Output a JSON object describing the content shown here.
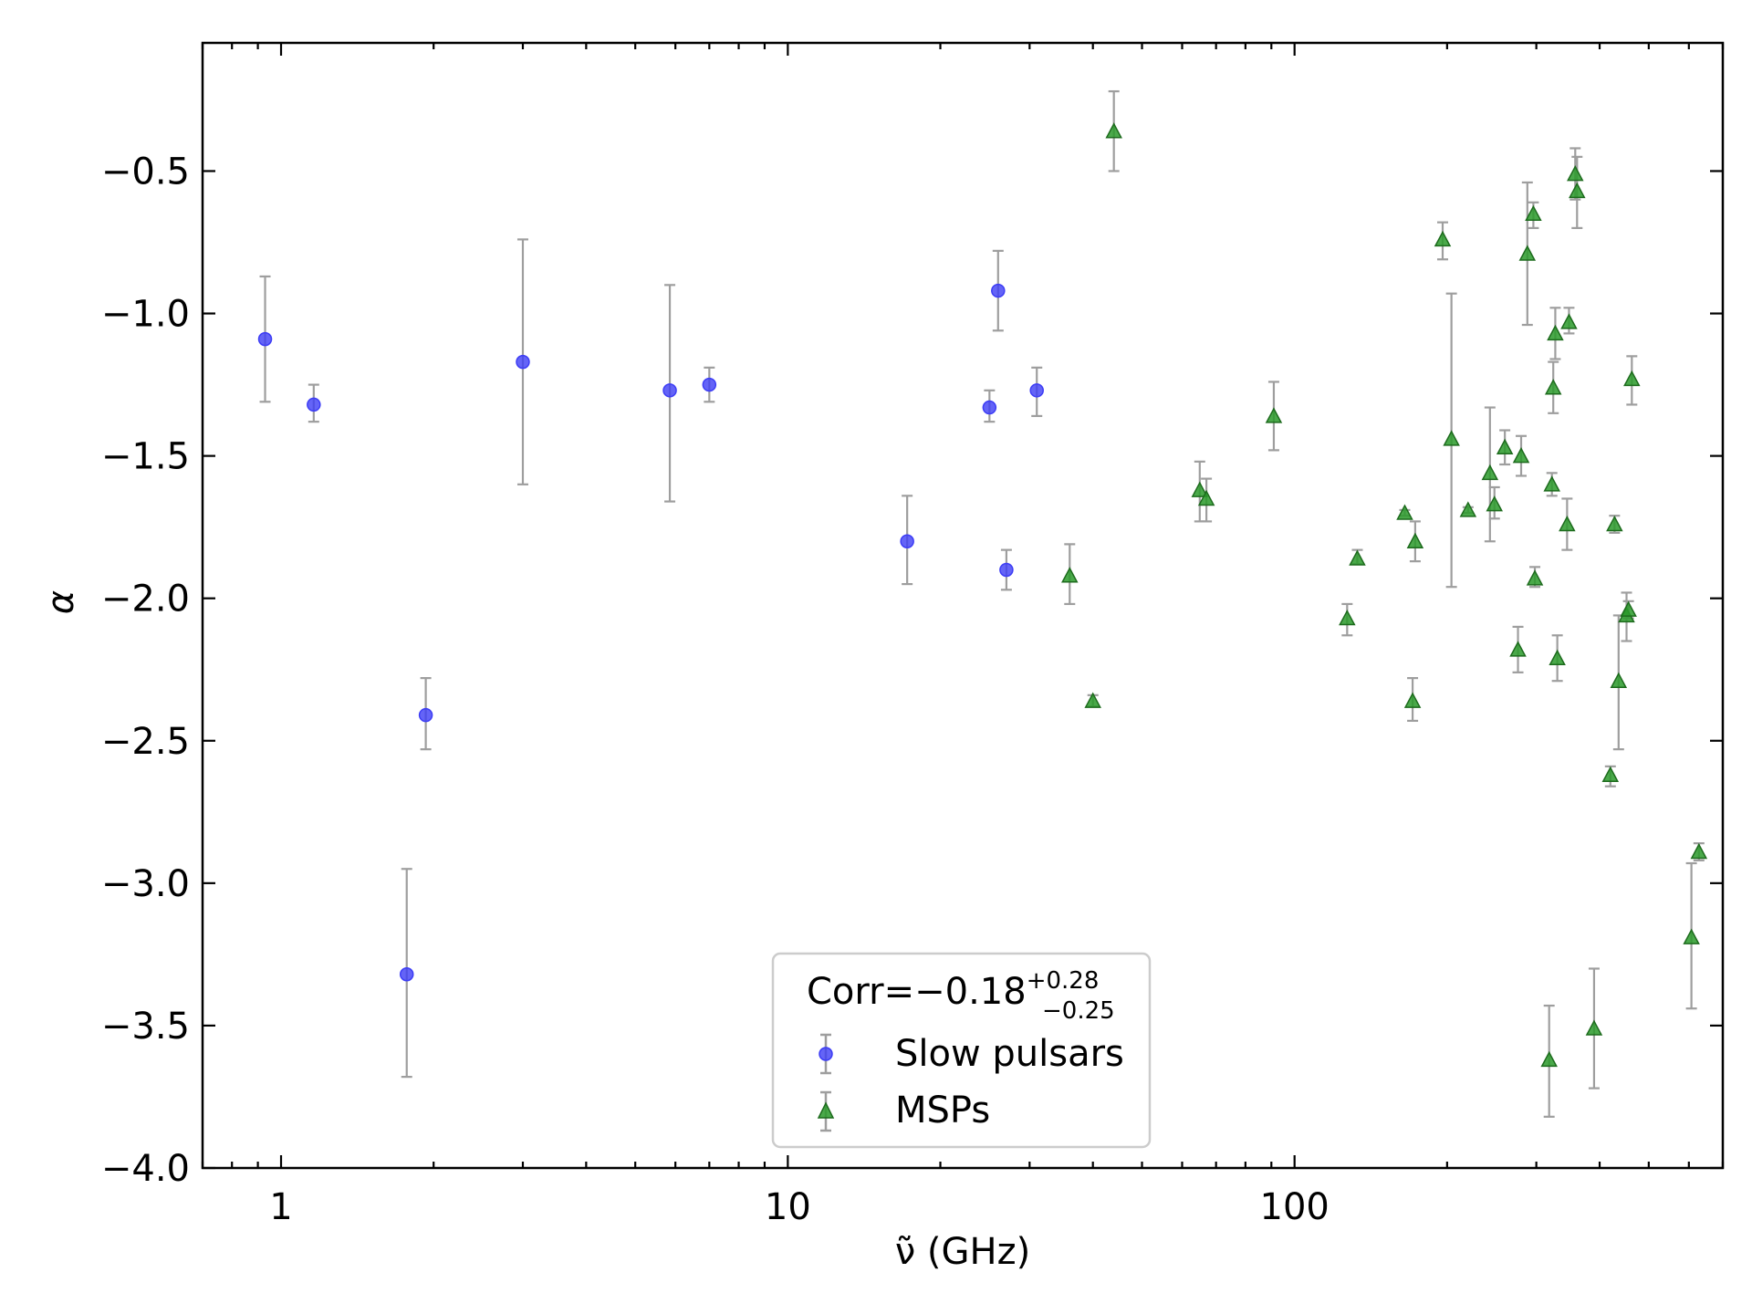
{
  "chart_data": {
    "type": "scatter",
    "xlabel": "ν̃ (GHz)",
    "ylabel": "α",
    "x_scale": "log",
    "xlim": [
      0.7,
      700
    ],
    "ylim": [
      -4.0,
      -0.05
    ],
    "x_ticks": [
      1,
      10,
      100
    ],
    "x_tick_labels": [
      "1",
      "10",
      "100"
    ],
    "y_ticks": [
      -4.0,
      -3.5,
      -3.0,
      -2.5,
      -2.0,
      -1.5,
      -1.0,
      -0.5
    ],
    "y_tick_labels": [
      "−4.0",
      "−3.5",
      "−3.0",
      "−2.5",
      "−2.0",
      "−1.5",
      "−1.0",
      "−0.5"
    ],
    "grid": false,
    "legend": {
      "placement": "bottom-center",
      "title_main": "Corr=−0.18",
      "title_sup": "+0.28",
      "title_sub": "−0.25"
    },
    "series": [
      {
        "name": "Slow pulsars",
        "marker": "circle",
        "color": "#3d3df5",
        "points": [
          {
            "x": 0.93,
            "y": -1.09,
            "lo": -1.31,
            "hi": -0.87
          },
          {
            "x": 1.16,
            "y": -1.32,
            "lo": -1.38,
            "hi": -1.25
          },
          {
            "x": 1.77,
            "y": -3.32,
            "lo": -3.68,
            "hi": -2.95
          },
          {
            "x": 1.93,
            "y": -2.41,
            "lo": -2.53,
            "hi": -2.28
          },
          {
            "x": 3.0,
            "y": -1.17,
            "lo": -1.6,
            "hi": -0.74
          },
          {
            "x": 5.85,
            "y": -1.27,
            "lo": -1.66,
            "hi": -0.9
          },
          {
            "x": 7.0,
            "y": -1.25,
            "lo": -1.31,
            "hi": -1.19
          },
          {
            "x": 17.2,
            "y": -1.8,
            "lo": -1.95,
            "hi": -1.64
          },
          {
            "x": 25.0,
            "y": -1.33,
            "lo": -1.38,
            "hi": -1.27
          },
          {
            "x": 26.0,
            "y": -0.92,
            "lo": -1.06,
            "hi": -0.78
          },
          {
            "x": 27.0,
            "y": -1.9,
            "lo": -1.97,
            "hi": -1.83
          },
          {
            "x": 31.0,
            "y": -1.27,
            "lo": -1.36,
            "hi": -1.19
          }
        ]
      },
      {
        "name": "MSPs",
        "marker": "triangle",
        "color": "#2a9a2a",
        "points": [
          {
            "x": 36.0,
            "y": -1.92,
            "lo": -2.02,
            "hi": -1.81
          },
          {
            "x": 40.0,
            "y": -2.36,
            "lo": -2.38,
            "hi": -2.34
          },
          {
            "x": 44.0,
            "y": -0.36,
            "lo": -0.5,
            "hi": -0.22
          },
          {
            "x": 65.0,
            "y": -1.62,
            "lo": -1.73,
            "hi": -1.52
          },
          {
            "x": 67.0,
            "y": -1.65,
            "lo": -1.73,
            "hi": -1.58
          },
          {
            "x": 91.0,
            "y": -1.36,
            "lo": -1.48,
            "hi": -1.24
          },
          {
            "x": 127.0,
            "y": -2.07,
            "lo": -2.13,
            "hi": -2.02
          },
          {
            "x": 133.0,
            "y": -1.86,
            "lo": -1.88,
            "hi": -1.83
          },
          {
            "x": 165.0,
            "y": -1.7,
            "lo": -1.71,
            "hi": -1.69
          },
          {
            "x": 171.0,
            "y": -2.36,
            "lo": -2.43,
            "hi": -2.28
          },
          {
            "x": 173.0,
            "y": -1.8,
            "lo": -1.87,
            "hi": -1.73
          },
          {
            "x": 196.0,
            "y": -0.74,
            "lo": -0.81,
            "hi": -0.68
          },
          {
            "x": 204.0,
            "y": -1.44,
            "lo": -1.96,
            "hi": -0.93
          },
          {
            "x": 220.0,
            "y": -1.69,
            "lo": -1.7,
            "hi": -1.68
          },
          {
            "x": 243.0,
            "y": -1.56,
            "lo": -1.8,
            "hi": -1.33
          },
          {
            "x": 248.0,
            "y": -1.67,
            "lo": -1.72,
            "hi": -1.61
          },
          {
            "x": 260.0,
            "y": -1.47,
            "lo": -1.53,
            "hi": -1.41
          },
          {
            "x": 276.0,
            "y": -2.18,
            "lo": -2.26,
            "hi": -2.1
          },
          {
            "x": 280.0,
            "y": -1.5,
            "lo": -1.57,
            "hi": -1.43
          },
          {
            "x": 288.0,
            "y": -0.79,
            "lo": -1.04,
            "hi": -0.54
          },
          {
            "x": 296.0,
            "y": -0.65,
            "lo": -0.7,
            "hi": -0.61
          },
          {
            "x": 298.0,
            "y": -1.93,
            "lo": -1.96,
            "hi": -1.89
          },
          {
            "x": 318.0,
            "y": -3.62,
            "lo": -3.82,
            "hi": -3.43
          },
          {
            "x": 322.0,
            "y": -1.6,
            "lo": -1.64,
            "hi": -1.56
          },
          {
            "x": 324.0,
            "y": -1.26,
            "lo": -1.35,
            "hi": -1.17
          },
          {
            "x": 327.0,
            "y": -1.07,
            "lo": -1.16,
            "hi": -0.98
          },
          {
            "x": 330.0,
            "y": -2.21,
            "lo": -2.29,
            "hi": -2.13
          },
          {
            "x": 345.0,
            "y": -1.74,
            "lo": -1.83,
            "hi": -1.65
          },
          {
            "x": 348.0,
            "y": -1.03,
            "lo": -1.07,
            "hi": -0.98
          },
          {
            "x": 358.0,
            "y": -0.51,
            "lo": -0.6,
            "hi": -0.42
          },
          {
            "x": 361.0,
            "y": -0.57,
            "lo": -0.7,
            "hi": -0.45
          },
          {
            "x": 390.0,
            "y": -3.51,
            "lo": -3.72,
            "hi": -3.3
          },
          {
            "x": 420.0,
            "y": -2.62,
            "lo": -2.66,
            "hi": -2.59
          },
          {
            "x": 428.0,
            "y": -1.74,
            "lo": -1.77,
            "hi": -1.71
          },
          {
            "x": 436.0,
            "y": -2.29,
            "lo": -2.53,
            "hi": -2.06
          },
          {
            "x": 452.0,
            "y": -2.06,
            "lo": -2.15,
            "hi": -1.98
          },
          {
            "x": 456.0,
            "y": -2.04,
            "lo": -2.07,
            "hi": -2.01
          },
          {
            "x": 463.0,
            "y": -1.23,
            "lo": -1.32,
            "hi": -1.15
          },
          {
            "x": 607.0,
            "y": -3.19,
            "lo": -3.44,
            "hi": -2.93
          },
          {
            "x": 628.0,
            "y": -2.89,
            "lo": -2.92,
            "hi": -2.86
          }
        ]
      }
    ]
  }
}
